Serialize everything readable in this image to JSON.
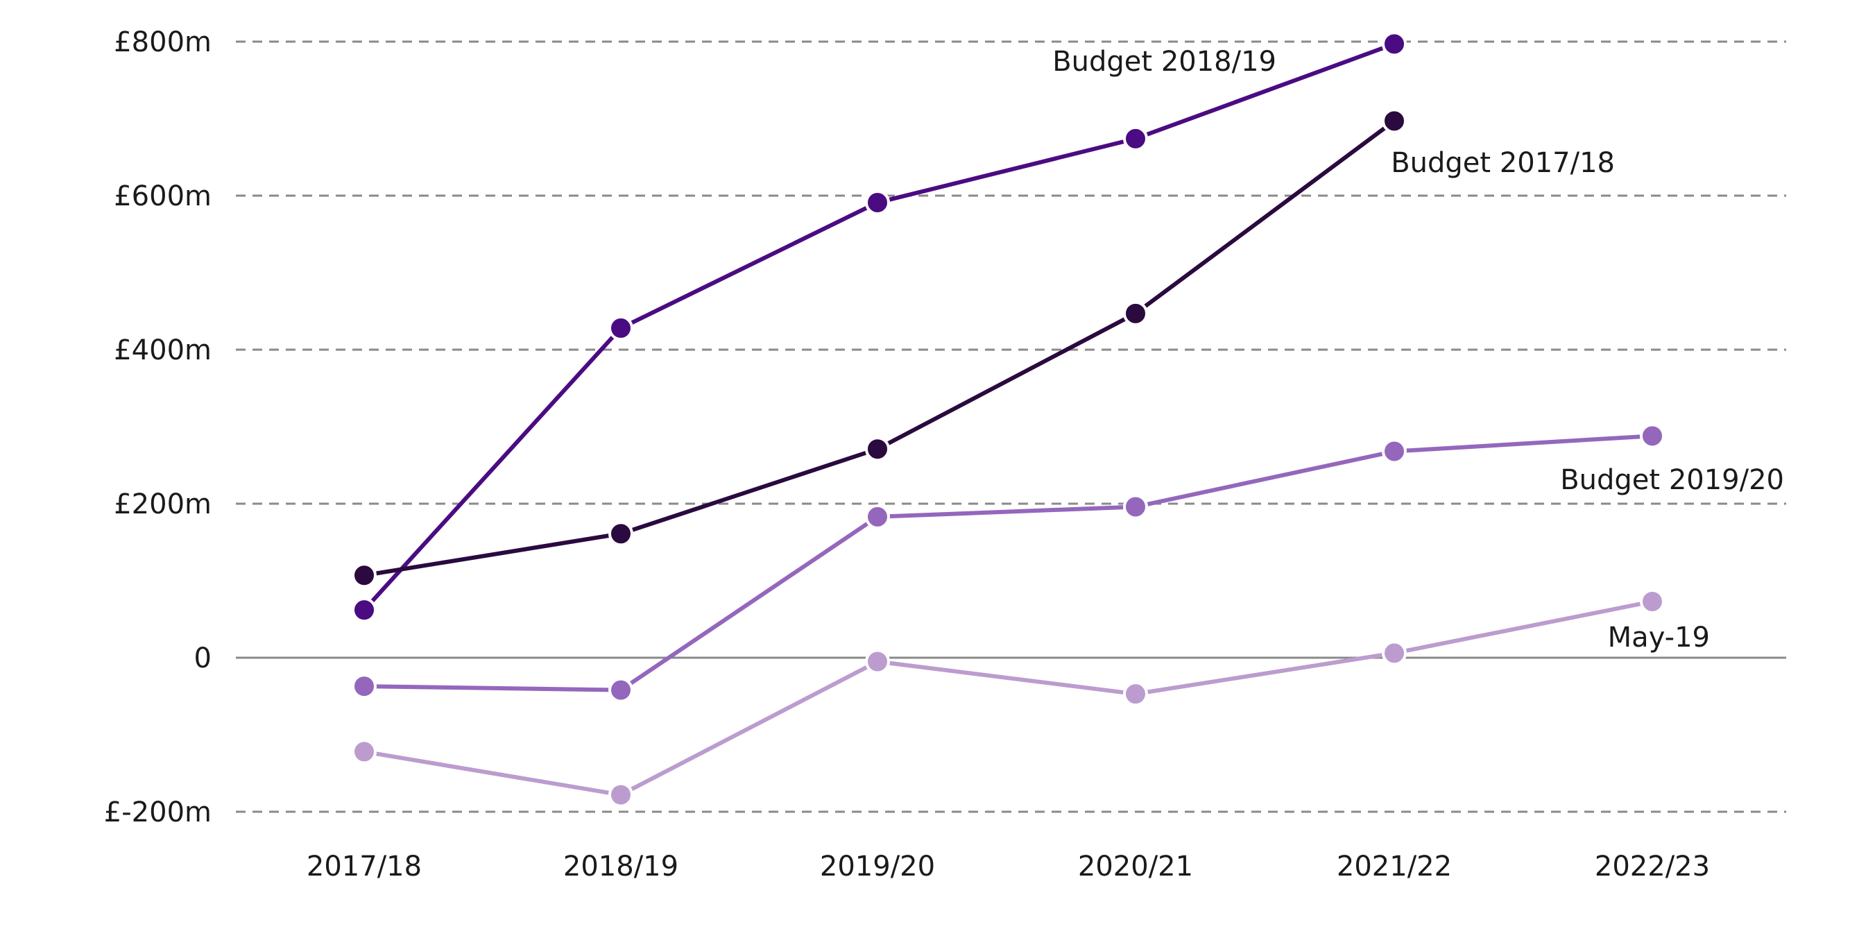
{
  "chart_data": {
    "type": "line",
    "categories": [
      "2017/18",
      "2018/19",
      "2019/20",
      "2020/21",
      "2021/22",
      "2022/23"
    ],
    "ylim": [
      -200,
      800
    ],
    "yticks": [
      -200,
      0,
      200,
      400,
      600,
      800
    ],
    "ytick_labels": [
      "£-200m",
      "0",
      "£200m",
      "£400m",
      "£600m",
      "£800m"
    ],
    "grid": true,
    "legend": "inline labels",
    "series": [
      {
        "name": "Budget 2018/19",
        "color": "#4b0b82",
        "values": [
          62,
          428,
          591,
          674,
          797,
          null
        ]
      },
      {
        "name": "Budget 2017/18",
        "color": "#2a0a3f",
        "values": [
          107,
          161,
          271,
          447,
          697,
          null
        ]
      },
      {
        "name": "Budget 2019/20",
        "color": "#9467bd",
        "values": [
          -37,
          -42,
          183,
          196,
          268,
          288
        ]
      },
      {
        "name": "May-19",
        "color": "#bc9ccf",
        "values": [
          -122,
          -178,
          -5,
          -47,
          6,
          73
        ]
      }
    ]
  }
}
